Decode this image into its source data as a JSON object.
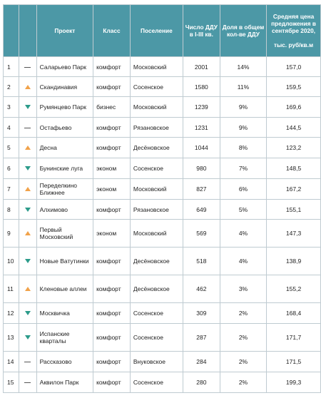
{
  "headers": {
    "rank": "",
    "trend": "",
    "project": "Проект",
    "class": "Класс",
    "settlement": "Поселение",
    "ddu_count": "Число ДДУ в I-III кв.",
    "share": "Доля в общем кол-ве ДДУ",
    "price_title": "Средняя цена предложения в сентябре 2020,",
    "price_unit": "тыс. руб/кв.м"
  },
  "trend_icons": {
    "up": "arrow-up-icon",
    "down": "arrow-down-icon",
    "same": "dash-icon"
  },
  "colors": {
    "header_bg": "#4c98a6",
    "up": "#f1a24a",
    "down": "#2c9b8a"
  },
  "rows": [
    {
      "rank": "1",
      "trend": "same",
      "project": "Саларьево Парк",
      "class": "комфорт",
      "settlement": "Московский",
      "ddu": "2001",
      "share": "14%",
      "price": "157,0"
    },
    {
      "rank": "2",
      "trend": "up",
      "project": "Скандинавия",
      "class": "комфорт",
      "settlement": "Сосенское",
      "ddu": "1580",
      "share": "11%",
      "price": "159,5"
    },
    {
      "rank": "3",
      "trend": "down",
      "project": "Румянцево Парк",
      "class": "бизнес",
      "settlement": "Московский",
      "ddu": "1239",
      "share": "9%",
      "price": "169,6"
    },
    {
      "rank": "4",
      "trend": "same",
      "project": "Остафьево",
      "class": "комфорт",
      "settlement": "Рязановское",
      "ddu": "1231",
      "share": "9%",
      "price": "144,5"
    },
    {
      "rank": "5",
      "trend": "up",
      "project": "Десна",
      "class": "комфорт",
      "settlement": "Десёновское",
      "ddu": "1044",
      "share": "8%",
      "price": "123,2"
    },
    {
      "rank": "6",
      "trend": "down",
      "project": "Бунинские луга",
      "class": "эконом",
      "settlement": "Сосенское",
      "ddu": "980",
      "share": "7%",
      "price": "148,5"
    },
    {
      "rank": "7",
      "trend": "up",
      "project": "Переделкино Ближнее",
      "class": "эконом",
      "settlement": "Московский",
      "ddu": "827",
      "share": "6%",
      "price": "167,2"
    },
    {
      "rank": "8",
      "trend": "down",
      "project": "Алхимово",
      "class": "комфорт",
      "settlement": "Рязановское",
      "ddu": "649",
      "share": "5%",
      "price": "155,1"
    },
    {
      "rank": "9",
      "trend": "up",
      "project": "Первый Московский",
      "class": "эконом",
      "settlement": "Московский",
      "ddu": "569",
      "share": "4%",
      "price": "147,3"
    },
    {
      "rank": "10",
      "trend": "down",
      "project": "Новые Ватутинки",
      "class": "комфорт",
      "settlement": "Десёновское",
      "ddu": "518",
      "share": "4%",
      "price": "138,9"
    },
    {
      "rank": "11",
      "trend": "up",
      "project": "Кленовые аллеи",
      "class": "комфорт",
      "settlement": "Десёновское",
      "ddu": "462",
      "share": "3%",
      "price": "155,2"
    },
    {
      "rank": "12",
      "trend": "down",
      "project": "Москвичка",
      "class": "комфорт",
      "settlement": "Сосенское",
      "ddu": "309",
      "share": "2%",
      "price": "168,4"
    },
    {
      "rank": "13",
      "trend": "down",
      "project": "Испанские кварталы",
      "class": "комфорт",
      "settlement": "Сосенское",
      "ddu": "287",
      "share": "2%",
      "price": "171,7"
    },
    {
      "rank": "14",
      "trend": "same",
      "project": "Рассказово",
      "class": "комфорт",
      "settlement": "Внуковское",
      "ddu": "284",
      "share": "2%",
      "price": "171,5"
    },
    {
      "rank": "15",
      "trend": "same",
      "project": "Аквилон Парк",
      "class": "комфорт",
      "settlement": "Сосенское",
      "ddu": "280",
      "share": "2%",
      "price": "199,3"
    }
  ]
}
